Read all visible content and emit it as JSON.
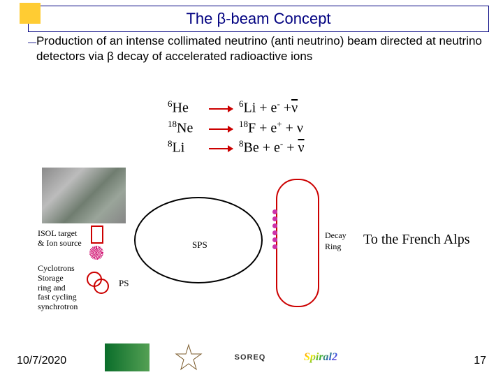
{
  "title": "The β-beam Concept",
  "description": "Production of an intense collimated neutrino (anti neutrino) beam directed at neutrino detectors via β decay of accelerated radioactive ions",
  "reactions": [
    {
      "lhs_mass": "6",
      "lhs_el": "He",
      "rhs_mass": "6",
      "rhs_el": "Li",
      "rhs_tail_html": " + e<span class='sup'>-</span> +<span class='overbar'>ν</span>"
    },
    {
      "lhs_mass": "18",
      "lhs_el": "Ne",
      "rhs_mass": "18",
      "rhs_el": "F",
      "rhs_tail_html": " + e<span class='sup'>+</span> + ν"
    },
    {
      "lhs_mass": "8",
      "lhs_el": "Li",
      "rhs_mass": "8",
      "rhs_el": "Be",
      "rhs_tail_html": " + e<span class='sup'>-</span> + <span class='overbar'>ν</span>"
    }
  ],
  "labels": {
    "isol": "ISOL target\n& Ion source",
    "cyclotrons": "Cyclotrons\nStorage\nring and\nfast cycling\nsynchrotron",
    "ps": "PS",
    "sps": "SPS",
    "decay": "Decay",
    "ring": "Ring",
    "dest": "To the French Alps"
  },
  "footer": {
    "date": "10/7/2020",
    "page": "17",
    "logos": [
      "",
      "",
      "SOREQ",
      "Spiral2"
    ]
  },
  "colors": {
    "accent_yellow": "#ffcc33",
    "title_navy": "#000080",
    "arrow_red": "#cc0000",
    "decay_pink": "#cc33aa"
  }
}
